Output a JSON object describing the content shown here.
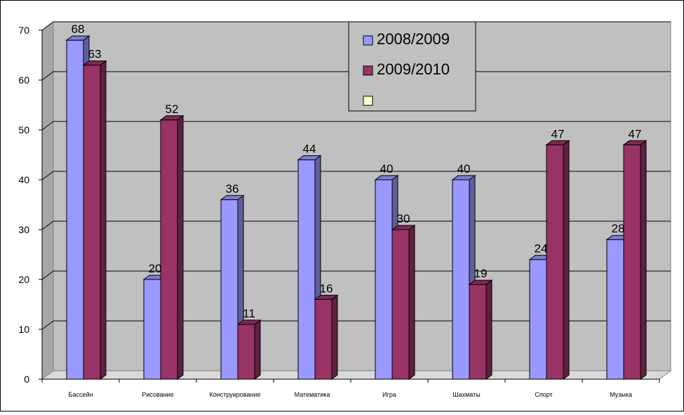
{
  "chart_data": {
    "type": "bar",
    "categories": [
      "Бассейн",
      "Рисование",
      "Конструирование",
      "Математика",
      "Игра",
      "Шахматы",
      "Спорт",
      "Музыка"
    ],
    "series": [
      {
        "name": "2008/2009",
        "values": [
          68,
          20,
          36,
          44,
          40,
          40,
          24,
          28
        ],
        "color": "#9999ff"
      },
      {
        "name": "2009/2010",
        "values": [
          63,
          52,
          11,
          16,
          30,
          19,
          47,
          47
        ],
        "color": "#993366"
      }
    ],
    "legend_extra_entry": {
      "name": "",
      "color": "#ffffcc"
    },
    "yticks": [
      0,
      10,
      20,
      30,
      40,
      50,
      60,
      70
    ],
    "ylim": [
      0,
      70
    ],
    "grid": true,
    "legend_position": "top-center",
    "plot_background": "#c0c0c0",
    "title": "",
    "xlabel": "",
    "ylabel": ""
  }
}
